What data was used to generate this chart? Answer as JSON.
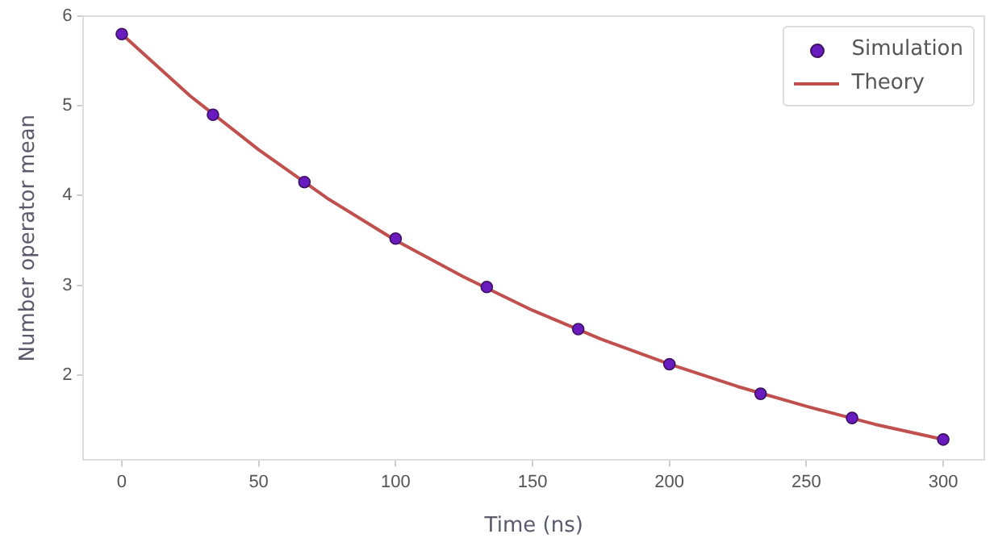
{
  "chart_data": {
    "type": "line",
    "xlabel": "Time (ns)",
    "ylabel": "Number operator mean",
    "xlim": [
      -14,
      315
    ],
    "xticks": [
      0,
      50,
      100,
      150,
      200,
      250,
      300
    ],
    "ylim": [
      1.05,
      6.0
    ],
    "yticks": [
      2,
      3,
      4,
      5,
      6
    ],
    "grid": false,
    "legend": "top right",
    "series": [
      {
        "name": "Simulation",
        "type": "scatter",
        "color": "#6a1bbf",
        "marker": "circle",
        "x": [
          0,
          33.3,
          66.7,
          100,
          133.3,
          166.7,
          200,
          233.3,
          266.7,
          300
        ],
        "values": [
          5.8,
          4.9,
          4.15,
          3.52,
          2.98,
          2.51,
          2.12,
          1.79,
          1.52,
          1.28
        ]
      },
      {
        "name": "Theory",
        "type": "line",
        "color": "#c0504d",
        "line_style": "solid",
        "marker": "none",
        "x": [
          0,
          25,
          50,
          75,
          100,
          125,
          150,
          175,
          200,
          225,
          250,
          275,
          300
        ],
        "values": [
          5.8,
          5.11,
          4.51,
          3.97,
          3.5,
          3.09,
          2.72,
          2.4,
          2.12,
          1.87,
          1.65,
          1.45,
          1.28
        ]
      }
    ]
  }
}
